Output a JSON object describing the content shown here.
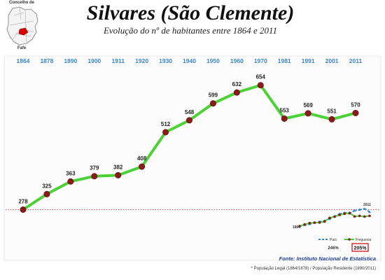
{
  "header": {
    "title": "Silvares (São Clemente)",
    "subtitle": "Evolução do nº de habitantes entre 1864 e 2011",
    "map_label_1": "Concelho de",
    "map_label_2": "Fafe"
  },
  "colors": {
    "year_text": "#3a86c8",
    "line": "#4cd137",
    "marker": "#8b1a1a",
    "ref_line": "#d9534f",
    "source_text": "#1f3f8f",
    "pct_box": "#cc0000",
    "pais_series": "#3a86c8"
  },
  "chart_data": {
    "type": "line",
    "title": "Evolução do nº de habitantes entre 1864 e 2011",
    "categories": [
      "1864",
      "1878",
      "1890",
      "1900",
      "1911",
      "1920",
      "1930",
      "1940",
      "1950",
      "1960",
      "1970",
      "1981",
      "1991",
      "2001",
      "2011"
    ],
    "values": [
      278,
      325,
      363,
      379,
      382,
      408,
      512,
      548,
      599,
      632,
      654,
      553,
      569,
      551,
      570
    ],
    "reference_line": {
      "value": 278,
      "style": "dotted"
    },
    "ylim": [
      150,
      700
    ],
    "grid": false,
    "legend": "none"
  },
  "inset": {
    "label_start": "1864",
    "label_end": "2011",
    "legend_pais": "País",
    "legend_freguesia": "Freguesia",
    "pct_pais": "246%",
    "pct_freguesia": "205%",
    "pais_rel": [
      1.0,
      1.12,
      1.22,
      1.33,
      1.45,
      1.55,
      1.75,
      2.0,
      2.25,
      2.38,
      2.3,
      2.6,
      2.69,
      2.78,
      2.46
    ],
    "freg_rel": [
      1.0,
      1.17,
      1.31,
      1.36,
      1.37,
      1.47,
      1.84,
      1.97,
      2.15,
      2.27,
      2.35,
      1.99,
      2.05,
      1.98,
      2.05
    ]
  },
  "footer": {
    "source": "Fonte: Instituto Nacional de Estatística",
    "note": "* População Legal (1864/1878) / População Residente (1890/2011)"
  }
}
